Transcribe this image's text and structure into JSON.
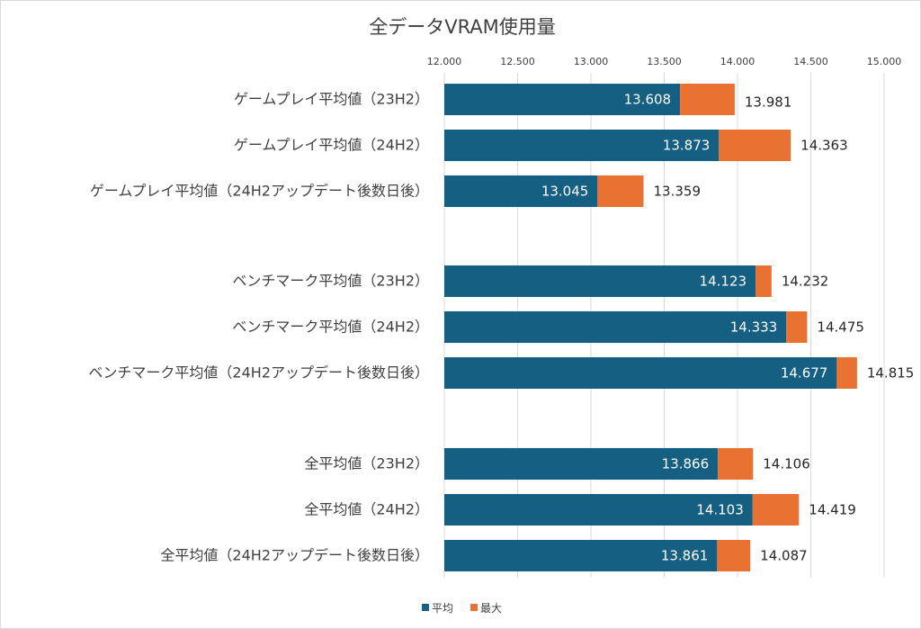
{
  "chart_data": {
    "type": "bar",
    "orientation": "horizontal",
    "stacked": true,
    "title": "全データVRAM使用量",
    "xlim": [
      12.0,
      15.0
    ],
    "ticks": [
      "12.000",
      "12.500",
      "13.000",
      "13.500",
      "14.000",
      "14.500",
      "15.000"
    ],
    "tick_values": [
      12.0,
      12.5,
      13.0,
      13.5,
      14.0,
      14.5,
      15.0
    ],
    "grid": true,
    "legend_position": "bottom",
    "groups": [
      {
        "rows": [
          {
            "category": "ゲームプレイ平均値（23H2）",
            "avg": 13.608,
            "max": 13.981,
            "avg_label": "13.608",
            "max_label": "13.981"
          },
          {
            "category": "ゲームプレイ平均値（24H2）",
            "avg": 13.873,
            "max": 14.363,
            "avg_label": "13.873",
            "max_label": "14.363"
          },
          {
            "category": "ゲームプレイ平均値（24H2アップデート後数日後）",
            "avg": 13.045,
            "max": 13.359,
            "avg_label": "13.045",
            "max_label": "13.359"
          }
        ]
      },
      {
        "rows": [
          {
            "category": "ベンチマーク平均値（23H2）",
            "avg": 14.123,
            "max": 14.232,
            "avg_label": "14.123",
            "max_label": "14.232"
          },
          {
            "category": "ベンチマーク平均値（24H2）",
            "avg": 14.333,
            "max": 14.475,
            "avg_label": "14.333",
            "max_label": "14.475"
          },
          {
            "category": "ベンチマーク平均値（24H2アップデート後数日後）",
            "avg": 14.677,
            "max": 14.815,
            "avg_label": "14.677",
            "max_label": "14.815"
          }
        ]
      },
      {
        "rows": [
          {
            "category": "全平均値（23H2）",
            "avg": 13.866,
            "max": 14.106,
            "avg_label": "13.866",
            "max_label": "14.106"
          },
          {
            "category": "全平均値（24H2）",
            "avg": 14.103,
            "max": 14.419,
            "avg_label": "14.103",
            "max_label": "14.419"
          },
          {
            "category": "全平均値（24H2アップデート後数日後）",
            "avg": 13.861,
            "max": 14.087,
            "avg_label": "13.861",
            "max_label": "14.087"
          }
        ]
      }
    ],
    "series": [
      {
        "name": "平均",
        "color": "#156082"
      },
      {
        "name": "最大",
        "color": "#E97132"
      }
    ],
    "gridline_color": "#d9d9d9"
  }
}
